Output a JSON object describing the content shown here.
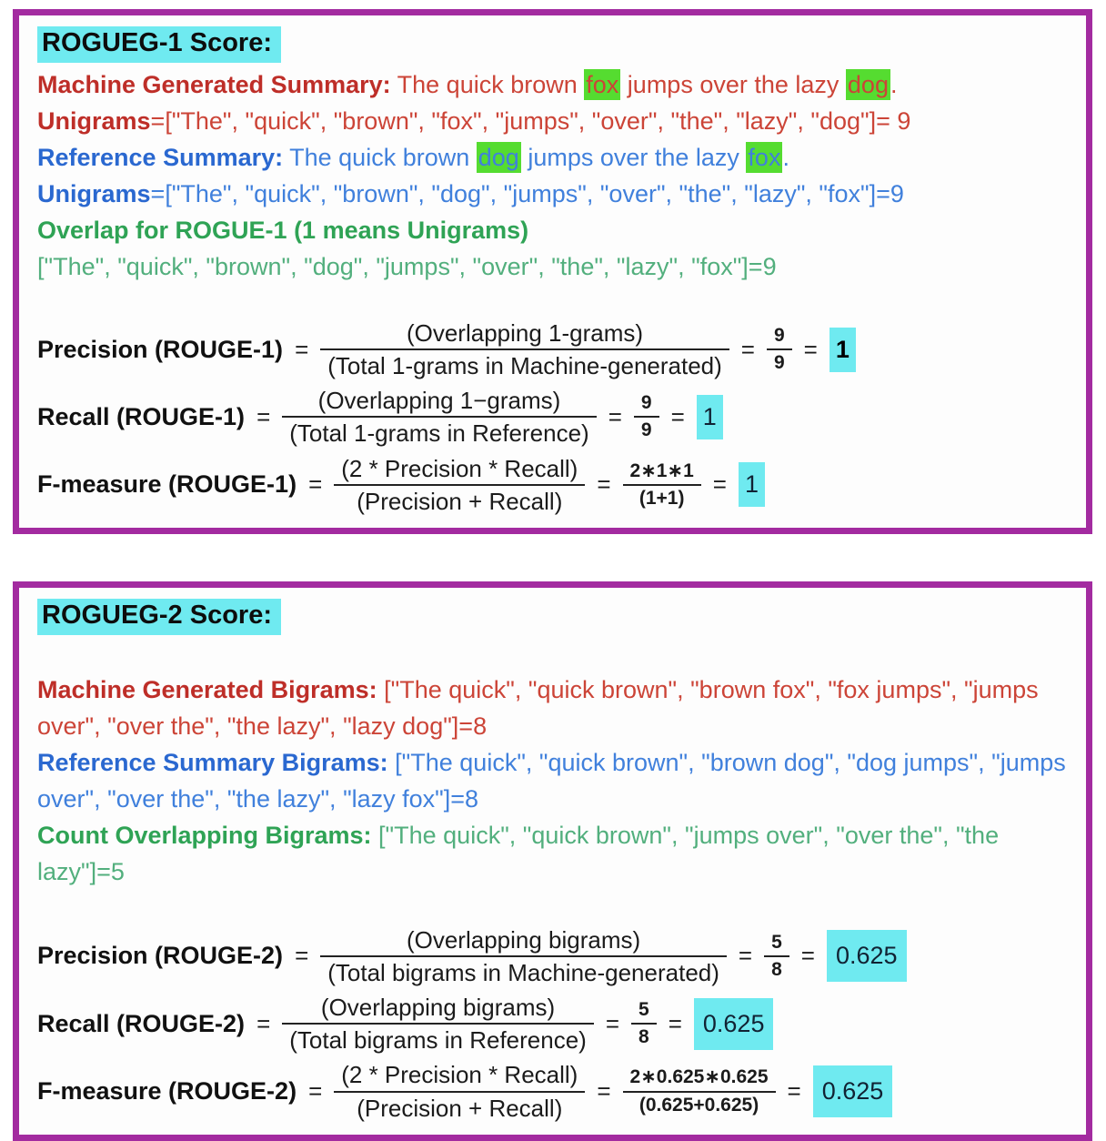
{
  "colors": {
    "border_purple": "#A32BA0",
    "highlight_cyan": "#6FEAF0",
    "highlight_green": "#55DC30",
    "text_red": "#CC4437",
    "text_red_bold": "#BE2E28",
    "text_blue": "#4080DC",
    "text_blue_bold": "#2A68D0",
    "text_green_light": "#52AF7D",
    "text_green_bold": "#2FA355",
    "text_black": "#161616"
  },
  "symbols": {
    "equals": "="
  },
  "rouge1": {
    "title": "ROGUEG-1 Score:",
    "lines": [
      [
        {
          "t": "Machine Generated Summary:",
          "c": "red",
          "b": true
        },
        {
          "t": " The quick brown ",
          "c": "red"
        },
        {
          "t": "fox",
          "c": "red",
          "hl": "green"
        },
        {
          "t": " jumps over the lazy ",
          "c": "red"
        },
        {
          "t": "dog",
          "c": "red",
          "hl": "green"
        },
        {
          "t": ".",
          "c": "red"
        }
      ],
      [
        {
          "t": "Unigrams",
          "c": "red",
          "b": true
        },
        {
          "t": "=[\"The\", \"quick\", \"brown\", \"fox\", \"jumps\", \"over\", \"the\", \"lazy\", \"dog\"]= 9",
          "c": "red"
        }
      ],
      [
        {
          "t": "Reference Summary:",
          "c": "blue",
          "b": true
        },
        {
          "t": " The quick brown ",
          "c": "blue"
        },
        {
          "t": "dog",
          "c": "blue",
          "hl": "green"
        },
        {
          "t": " jumps over the lazy ",
          "c": "blue"
        },
        {
          "t": "fox",
          "c": "blue",
          "hl": "green"
        },
        {
          "t": ".",
          "c": "blue"
        }
      ],
      [
        {
          "t": "Unigrams",
          "c": "blue",
          "b": true
        },
        {
          "t": "=[\"The\", \"quick\", \"brown\", \"dog\", \"jumps\", \"over\", \"the\", \"lazy\", \"fox\"]=9",
          "c": "blue"
        }
      ],
      [
        {
          "t": "Overlap for ROGUE-1 (1 means Unigrams)",
          "c": "green",
          "b": true
        }
      ],
      [
        {
          "t": "[\"The\", \"quick\", \"brown\", \"dog\", \"jumps\", \"over\", \"the\", \"lazy\", \"fox\"]=9",
          "c": "green-light"
        }
      ]
    ],
    "formulas": [
      {
        "label": "Precision (ROUGE-1)",
        "num": "(Overlapping 1-grams)",
        "den": "(Total 1-grams in Machine-generated)",
        "frac_num": "9",
        "frac_den": "9",
        "result": "1",
        "result_bold": true
      },
      {
        "label": "Recall (ROUGE-1)",
        "num": "(Overlapping 1−grams)",
        "den": "(Total 1-grams in Reference)",
        "frac_num": "9",
        "frac_den": "9",
        "result": "1",
        "result_bold": false
      },
      {
        "label": "F-measure (ROUGE-1)",
        "num": "(2 * Precision * Recall)",
        "den": "(Precision + Recall)",
        "frac_num": "2∗1∗1",
        "frac_den": "(1+1)",
        "result": "1",
        "result_bold": false
      }
    ]
  },
  "rouge2": {
    "title": "ROGUEG-2 Score:",
    "lines": [
      [
        {
          "t": "Machine Generated Bigrams:",
          "c": "red",
          "b": true
        },
        {
          "t": " [\"The quick\", \"quick brown\", \"brown fox\", \"fox jumps\", \"jumps over\", \"over the\", \"the lazy\", \"lazy dog\"]=8",
          "c": "red"
        }
      ],
      [
        {
          "t": "Reference Summary Bigrams:",
          "c": "blue",
          "b": true
        },
        {
          "t": " [\"The quick\", \"quick brown\", \"brown dog\", \"dog jumps\", \"jumps over\", \"over the\", \"the lazy\", \"lazy fox\"]=8",
          "c": "blue"
        }
      ],
      [
        {
          "t": "Count Overlapping Bigrams:",
          "c": "green",
          "b": true
        },
        {
          "t": " [\"The quick\", \"quick brown\", \"jumps over\", \"over the\", \"the lazy\"]=5",
          "c": "green-light"
        }
      ]
    ],
    "formulas": [
      {
        "label": "Precision (ROUGE-2)",
        "num": "(Overlapping bigrams)",
        "den": "(Total bigrams in Machine-generated)",
        "frac_num": "5",
        "frac_den": "8",
        "result": "0.625",
        "result_bold": false
      },
      {
        "label": "Recall (ROUGE-2)",
        "num": "(Overlapping bigrams)",
        "den": "(Total bigrams in Reference)",
        "frac_num": "5",
        "frac_den": "8",
        "result": "0.625",
        "result_bold": false
      },
      {
        "label": "F-measure (ROUGE-2)",
        "num": "(2 * Precision * Recall)",
        "den": "(Precision + Recall)",
        "frac_num": "2∗0.625∗0.625",
        "frac_den": "(0.625+0.625)",
        "result": "0.625",
        "result_bold": false
      }
    ]
  }
}
